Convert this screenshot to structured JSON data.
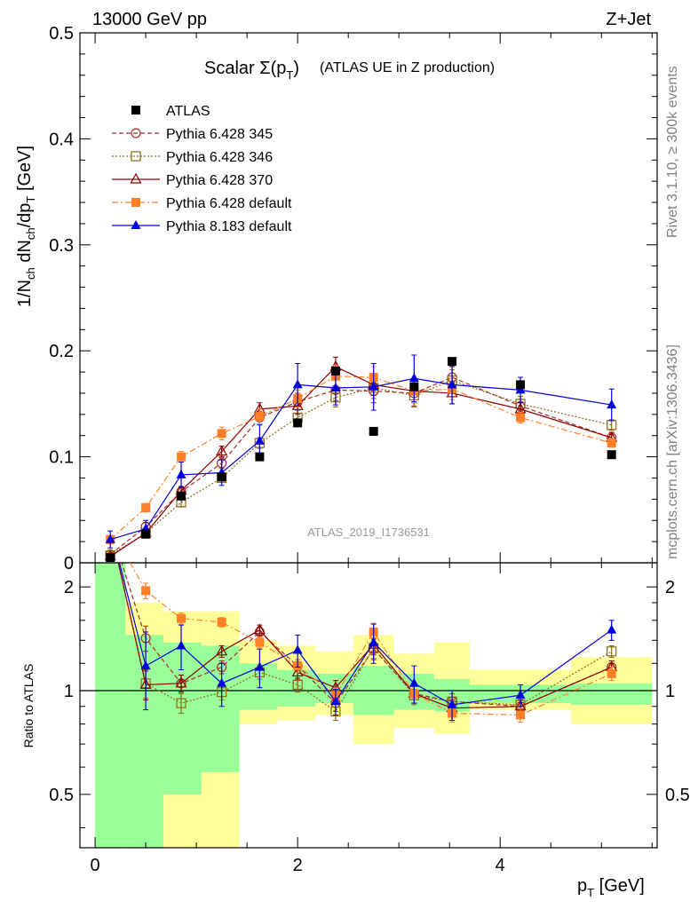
{
  "header": {
    "left": "13000 GeV pp",
    "right": "Z+Jet"
  },
  "side_labels": {
    "rivet": "Rivet 3.1.10, ≥ 300k events",
    "mcplots": "mcplots.cern.ch [arXiv:1306.3436]"
  },
  "chart_data": {
    "type": "scatter",
    "title_main": "Scalar Σ(p",
    "title_sub": "T",
    "title_close": ")",
    "title_rest": "(ATLAS UE in Z production)",
    "watermark": "ATLAS_2019_I1736531",
    "xlabel": "p_T [GeV]",
    "ylabel": "1/N_ch dN_ch/dp_T [GeV]",
    "xlim": [
      -0.15,
      5.55
    ],
    "ylim": [
      0,
      0.5
    ],
    "x": [
      0.15,
      0.5,
      0.85,
      1.25,
      1.625,
      2.0,
      2.375,
      2.75,
      3.15,
      3.525,
      4.2,
      5.1
    ],
    "x_ticks": [
      "0",
      "2",
      "4"
    ],
    "y_ticks": [
      "0",
      "0.1",
      "0.2",
      "0.3",
      "0.4",
      "0.5"
    ],
    "series": [
      {
        "name": "ATLAS",
        "color": "#000000",
        "marker": "square-filled",
        "line": "none",
        "values": [
          0.005,
          0.027,
          0.063,
          0.081,
          0.1,
          0.132,
          0.181,
          0.124,
          0.166,
          0.19,
          0.168,
          0.102
        ]
      },
      {
        "name": "Pythia 6.428 345",
        "color": "#a52a2a",
        "marker": "circle-open",
        "line": "dashed",
        "values": [
          0.008,
          0.034,
          0.067,
          0.094,
          0.137,
          0.152,
          0.163,
          0.162,
          0.16,
          0.175,
          0.148,
          0.118
        ],
        "errors": [
          0.003,
          0.004,
          0.004,
          0.005,
          0.006,
          0.008,
          0.01,
          0.011,
          0.012,
          0.01,
          0.006,
          0.005
        ]
      },
      {
        "name": "Pythia 6.428 346",
        "color": "#8b6914",
        "marker": "square-open",
        "line": "dotted",
        "values": [
          0.007,
          0.028,
          0.057,
          0.08,
          0.113,
          0.137,
          0.156,
          0.165,
          0.158,
          0.172,
          0.15,
          0.13
        ],
        "errors": [
          0.003,
          0.003,
          0.004,
          0.004,
          0.005,
          0.007,
          0.009,
          0.01,
          0.011,
          0.01,
          0.007,
          0.005
        ]
      },
      {
        "name": "Pythia 6.428 370",
        "color": "#8b0000",
        "marker": "triangle-open",
        "line": "solid",
        "values": [
          0.006,
          0.028,
          0.068,
          0.105,
          0.145,
          0.148,
          0.185,
          0.168,
          0.162,
          0.16,
          0.145,
          0.118
        ],
        "errors": [
          0.003,
          0.003,
          0.004,
          0.005,
          0.006,
          0.008,
          0.009,
          0.01,
          0.011,
          0.01,
          0.006,
          0.005
        ]
      },
      {
        "name": "Pythia 6.428 default",
        "color": "#ff7f27",
        "marker": "square-filled",
        "line": "dashdot",
        "values": [
          0.022,
          0.052,
          0.1,
          0.122,
          0.138,
          0.155,
          0.176,
          0.175,
          0.162,
          0.164,
          0.137,
          0.113
        ],
        "errors": [
          0.004,
          0.004,
          0.005,
          0.006,
          0.007,
          0.008,
          0.01,
          0.01,
          0.011,
          0.01,
          0.005,
          0.004
        ]
      },
      {
        "name": "Pythia 8.183 default",
        "color": "#0000dd",
        "marker": "triangle-filled",
        "line": "solid",
        "values": [
          0.022,
          0.032,
          0.083,
          0.085,
          0.115,
          0.168,
          0.165,
          0.166,
          0.174,
          0.168,
          0.163,
          0.149
        ],
        "errors": [
          0.008,
          0.008,
          0.012,
          0.012,
          0.015,
          0.02,
          0.016,
          0.022,
          0.022,
          0.018,
          0.012,
          0.015
        ]
      }
    ],
    "ratio": {
      "ylabel": "Ratio to ATLAS",
      "ylim": [
        0.35,
        2.35
      ],
      "y_ticks": [
        "0.5",
        "1",
        "2"
      ],
      "bins": [
        [
          0.0,
          0.3
        ],
        [
          0.3,
          0.675
        ],
        [
          0.675,
          1.05
        ],
        [
          1.05,
          1.425
        ],
        [
          1.425,
          1.8
        ],
        [
          1.8,
          2.175
        ],
        [
          2.175,
          2.55
        ],
        [
          2.55,
          2.95
        ],
        [
          2.95,
          3.35
        ],
        [
          3.35,
          3.7
        ],
        [
          3.7,
          4.7
        ],
        [
          4.7,
          5.5
        ]
      ],
      "green_band": [
        [
          0.35,
          2.35
        ],
        [
          0.35,
          1.45
        ],
        [
          0.5,
          1.38
        ],
        [
          0.58,
          1.35
        ],
        [
          0.88,
          1.2
        ],
        [
          0.9,
          1.15
        ],
        [
          0.92,
          1.12
        ],
        [
          0.85,
          1.18
        ],
        [
          0.88,
          1.12
        ],
        [
          0.87,
          1.08
        ],
        [
          0.92,
          1.04
        ],
        [
          0.91,
          1.05
        ]
      ],
      "yellow_band": [
        [
          0.35,
          2.35
        ],
        [
          0.35,
          1.8
        ],
        [
          0.35,
          1.7
        ],
        [
          0.35,
          1.7
        ],
        [
          0.8,
          1.4
        ],
        [
          0.82,
          1.35
        ],
        [
          0.85,
          1.3
        ],
        [
          0.7,
          1.45
        ],
        [
          0.78,
          1.28
        ],
        [
          0.75,
          1.38
        ],
        [
          0.88,
          1.15
        ],
        [
          0.8,
          1.25
        ]
      ],
      "visible_x": [
        0.5,
        0.85,
        1.25,
        1.625,
        2.0,
        2.375,
        2.75,
        3.15,
        3.525,
        4.2,
        5.1
      ],
      "series": [
        {
          "name": "Pythia 6.428 345",
          "values": [
            1.42,
            1.05,
            1.17,
            1.48,
            1.18,
            0.92,
            1.32,
            0.98,
            0.93,
            0.9,
            1.17
          ],
          "errors": [
            0.12,
            0.06,
            0.05,
            0.05,
            0.05,
            0.05,
            0.09,
            0.06,
            0.05,
            0.04,
            0.05
          ]
        },
        {
          "name": "Pythia 6.428 346",
          "values": [
            1.05,
            0.92,
            0.99,
            1.13,
            1.04,
            0.87,
            1.33,
            0.97,
            0.93,
            0.91,
            1.3
          ],
          "errors": [
            0.1,
            0.06,
            0.05,
            0.05,
            0.05,
            0.05,
            0.09,
            0.06,
            0.05,
            0.04,
            0.05
          ]
        },
        {
          "name": "Pythia 6.428 370",
          "values": [
            1.04,
            1.05,
            1.3,
            1.5,
            1.13,
            1.02,
            1.36,
            0.98,
            0.89,
            0.9,
            1.17
          ],
          "errors": [
            0.1,
            0.06,
            0.05,
            0.05,
            0.05,
            0.05,
            0.09,
            0.06,
            0.05,
            0.04,
            0.05
          ]
        },
        {
          "name": "Pythia 6.428 default",
          "values": [
            1.95,
            1.62,
            1.58,
            1.38,
            1.18,
            0.97,
            1.48,
            0.98,
            0.86,
            0.85,
            1.12
          ],
          "errors": [
            0.1,
            0.06,
            0.05,
            0.05,
            0.05,
            0.05,
            0.09,
            0.06,
            0.05,
            0.04,
            0.05
          ]
        },
        {
          "name": "Pythia 8.183 default",
          "values": [
            1.18,
            1.35,
            1.05,
            1.17,
            1.31,
            0.93,
            1.38,
            1.05,
            0.91,
            0.97,
            1.5
          ],
          "errors": [
            0.3,
            0.2,
            0.15,
            0.15,
            0.14,
            0.08,
            0.18,
            0.13,
            0.09,
            0.07,
            0.1
          ]
        }
      ]
    }
  }
}
